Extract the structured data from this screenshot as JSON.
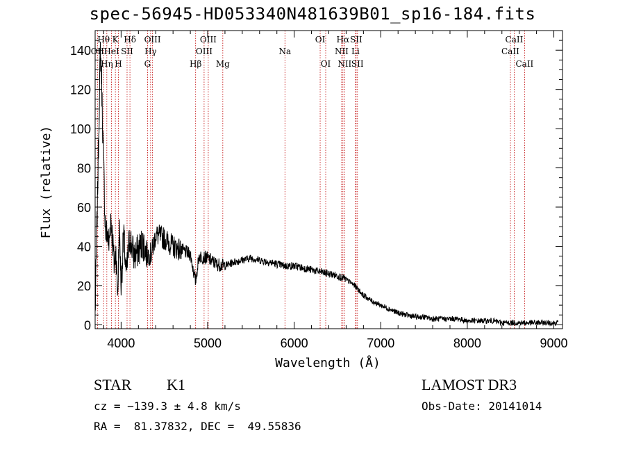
{
  "chart_data": {
    "type": "line",
    "title": "spec-56945-HD053340N481639B01_sp16-184.fits",
    "xlabel": "Wavelength (Å)",
    "ylabel": "Flux (relative)",
    "xlim": [
      3700,
      9100
    ],
    "ylim": [
      -2,
      150
    ],
    "xticks": [
      4000,
      5000,
      6000,
      7000,
      8000,
      9000
    ],
    "yticks": [
      0,
      20,
      40,
      60,
      80,
      100,
      120,
      140
    ],
    "series": [
      {
        "name": "spectrum",
        "x": [
          3700,
          3720,
          3740,
          3760,
          3775,
          3790,
          3800,
          3810,
          3825,
          3840,
          3860,
          3880,
          3900,
          3920,
          3940,
          3960,
          3980,
          4000,
          4030,
          4060,
          4100,
          4150,
          4200,
          4250,
          4300,
          4350,
          4400,
          4500,
          4600,
          4700,
          4800,
          4860,
          4900,
          5000,
          5100,
          5200,
          5300,
          5400,
          5500,
          5600,
          5700,
          5800,
          5900,
          6000,
          6100,
          6200,
          6300,
          6400,
          6500,
          6560,
          6600,
          6700,
          6800,
          6900,
          7000,
          7100,
          7200,
          7300,
          7400,
          7500,
          7600,
          7700,
          7800,
          7900,
          8000,
          8100,
          8200,
          8300,
          8400,
          8500,
          8600,
          8700,
          8800,
          8900,
          9000,
          9050
        ],
        "y": [
          5,
          48,
          95,
          140,
          125,
          95,
          80,
          60,
          45,
          48,
          40,
          55,
          45,
          30,
          38,
          15,
          50,
          20,
          46,
          25,
          45,
          35,
          38,
          42,
          36,
          36,
          46,
          44,
          40,
          38,
          36,
          22,
          35,
          34,
          31,
          30,
          32,
          33,
          34,
          33,
          32,
          31,
          30,
          30,
          29,
          28,
          27,
          26,
          25,
          24,
          23,
          20,
          15,
          12,
          10,
          8,
          6,
          5,
          4,
          4,
          3,
          3,
          3,
          3,
          2,
          2,
          2,
          2,
          1,
          1,
          1,
          1,
          1,
          1,
          1,
          1
        ]
      }
    ],
    "lines": [
      {
        "name": "Hθ",
        "wl": 3798,
        "row": 1
      },
      {
        "name": "OII",
        "wl": 3727,
        "row": 2
      },
      {
        "name": "HeI",
        "wl": 3889,
        "row": 2
      },
      {
        "name": "Hη",
        "wl": 3835,
        "row": 3
      },
      {
        "name": "K",
        "wl": 3934,
        "row": 1
      },
      {
        "name": "SII",
        "wl": 4069,
        "row": 2
      },
      {
        "name": "H",
        "wl": 3969,
        "row": 3
      },
      {
        "name": "Hδ",
        "wl": 4102,
        "row": 1
      },
      {
        "name": "OIII",
        "wl": 4363,
        "row": 1
      },
      {
        "name": "Hγ",
        "wl": 4341,
        "row": 2
      },
      {
        "name": "G",
        "wl": 4305,
        "row": 3
      },
      {
        "name": "OIII",
        "wl": 5007,
        "row": 1
      },
      {
        "name": "OIII",
        "wl": 4959,
        "row": 2
      },
      {
        "name": "Hβ",
        "wl": 4861,
        "row": 3
      },
      {
        "name": "Mg",
        "wl": 5175,
        "row": 3
      },
      {
        "name": "Na",
        "wl": 5893,
        "row": 2
      },
      {
        "name": "OI",
        "wl": 6300,
        "row": 1
      },
      {
        "name": "OI",
        "wl": 6364,
        "row": 3
      },
      {
        "name": "Hα",
        "wl": 6563,
        "row": 1
      },
      {
        "name": "NII",
        "wl": 6548,
        "row": 2
      },
      {
        "name": "NII",
        "wl": 6583,
        "row": 3
      },
      {
        "name": "SII",
        "wl": 6716,
        "row": 1
      },
      {
        "name": "Li",
        "wl": 6708,
        "row": 2
      },
      {
        "name": "SII",
        "wl": 6731,
        "row": 3
      },
      {
        "name": "CaII",
        "wl": 8542,
        "row": 1
      },
      {
        "name": "CaII",
        "wl": 8498,
        "row": 2
      },
      {
        "name": "CaII",
        "wl": 8662,
        "row": 3
      }
    ],
    "colors": {
      "spectrum": "#000000",
      "lines": "#c00000"
    }
  },
  "info": {
    "obj_class": "STAR",
    "subclass": "K1",
    "survey": "LAMOST DR3",
    "cz": "cz = −139.3 ± 4.8 km/s",
    "obs_date": "Obs-Date: 20141014",
    "radec": "RA =  81.37832, DEC =  49.55836"
  }
}
